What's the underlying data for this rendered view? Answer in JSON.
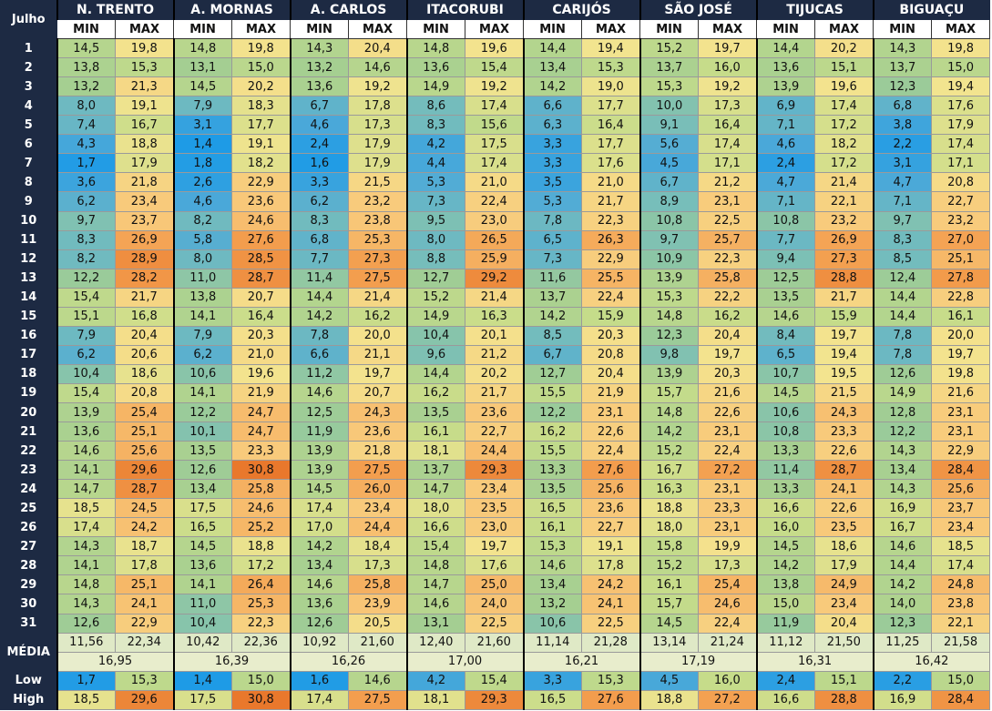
{
  "table": {
    "corner": "Julho",
    "stations": [
      "N. TRENTO",
      "A. MORNAS",
      "A. CARLOS",
      "ITACORUBI",
      "CARIJÓS",
      "SÃO JOSÉ",
      "TIJUCAS",
      "BIGUAÇU"
    ],
    "min_label": "MIN",
    "max_label": "MAX",
    "rows": [
      {
        "day": "1",
        "values": [
          "14,5",
          "19,8",
          "14,8",
          "19,8",
          "14,3",
          "20,4",
          "14,8",
          "19,6",
          "14,4",
          "19,4",
          "15,2",
          "19,7",
          "14,4",
          "20,2",
          "14,3",
          "19,8"
        ]
      },
      {
        "day": "2",
        "values": [
          "13,8",
          "15,3",
          "13,1",
          "15,0",
          "13,2",
          "14,6",
          "13,6",
          "15,4",
          "13,4",
          "15,3",
          "13,7",
          "16,0",
          "13,6",
          "15,1",
          "13,7",
          "15,0"
        ]
      },
      {
        "day": "3",
        "values": [
          "13,2",
          "21,3",
          "14,5",
          "20,2",
          "13,6",
          "19,2",
          "14,9",
          "19,2",
          "14,2",
          "19,0",
          "15,3",
          "19,2",
          "13,9",
          "19,6",
          "12,3",
          "19,4"
        ]
      },
      {
        "day": "4",
        "values": [
          "8,0",
          "19,1",
          "7,9",
          "18,3",
          "6,7",
          "17,8",
          "8,6",
          "17,4",
          "6,6",
          "17,7",
          "10,0",
          "17,3",
          "6,9",
          "17,4",
          "6,8",
          "17,6"
        ]
      },
      {
        "day": "5",
        "values": [
          "7,4",
          "16,7",
          "3,1",
          "17,7",
          "4,6",
          "17,3",
          "8,3",
          "15,6",
          "6,3",
          "16,4",
          "9,1",
          "16,4",
          "7,1",
          "17,2",
          "3,8",
          "17,9"
        ]
      },
      {
        "day": "6",
        "values": [
          "4,3",
          "18,8",
          "1,4",
          "19,1",
          "2,4",
          "17,9",
          "4,2",
          "17,5",
          "3,3",
          "17,7",
          "5,6",
          "17,4",
          "4,6",
          "18,2",
          "2,2",
          "17,4"
        ]
      },
      {
        "day": "7",
        "values": [
          "1,7",
          "17,9",
          "1,8",
          "18,2",
          "1,6",
          "17,9",
          "4,4",
          "17,4",
          "3,3",
          "17,6",
          "4,5",
          "17,1",
          "2,4",
          "17,2",
          "3,1",
          "17,1"
        ]
      },
      {
        "day": "8",
        "values": [
          "3,6",
          "21,8",
          "2,6",
          "22,9",
          "3,3",
          "21,5",
          "5,3",
          "21,0",
          "3,5",
          "21,0",
          "6,7",
          "21,2",
          "4,7",
          "21,4",
          "4,7",
          "20,8"
        ]
      },
      {
        "day": "9",
        "values": [
          "6,2",
          "23,4",
          "4,6",
          "23,6",
          "6,2",
          "23,2",
          "7,3",
          "22,4",
          "5,3",
          "21,7",
          "8,9",
          "23,1",
          "7,1",
          "22,1",
          "7,1",
          "22,7"
        ]
      },
      {
        "day": "10",
        "values": [
          "9,7",
          "23,7",
          "8,2",
          "24,6",
          "8,3",
          "23,8",
          "9,5",
          "23,0",
          "7,8",
          "22,3",
          "10,8",
          "22,5",
          "10,8",
          "23,2",
          "9,7",
          "23,2"
        ]
      },
      {
        "day": "11",
        "values": [
          "8,3",
          "26,9",
          "5,8",
          "27,6",
          "6,8",
          "25,3",
          "8,0",
          "26,5",
          "6,5",
          "26,3",
          "9,7",
          "25,7",
          "7,7",
          "26,9",
          "8,3",
          "27,0"
        ]
      },
      {
        "day": "12",
        "values": [
          "8,2",
          "28,9",
          "8,0",
          "28,5",
          "7,7",
          "27,3",
          "8,8",
          "25,9",
          "7,3",
          "22,9",
          "10,9",
          "22,3",
          "9,4",
          "27,3",
          "8,5",
          "25,1"
        ]
      },
      {
        "day": "13",
        "values": [
          "12,2",
          "28,2",
          "11,0",
          "28,7",
          "11,4",
          "27,5",
          "12,7",
          "29,2",
          "11,6",
          "25,5",
          "13,9",
          "25,8",
          "12,5",
          "28,8",
          "12,4",
          "27,8"
        ]
      },
      {
        "day": "14",
        "values": [
          "15,4",
          "21,7",
          "13,8",
          "20,7",
          "14,4",
          "21,4",
          "15,2",
          "21,4",
          "13,7",
          "22,4",
          "15,3",
          "22,2",
          "13,5",
          "21,7",
          "14,4",
          "22,8"
        ]
      },
      {
        "day": "15",
        "values": [
          "15,1",
          "16,8",
          "14,1",
          "16,4",
          "14,2",
          "16,2",
          "14,9",
          "16,3",
          "14,2",
          "15,9",
          "14,8",
          "16,2",
          "14,6",
          "15,9",
          "14,4",
          "16,1"
        ]
      },
      {
        "day": "16",
        "values": [
          "7,9",
          "20,4",
          "7,9",
          "20,3",
          "7,8",
          "20,0",
          "10,4",
          "20,1",
          "8,5",
          "20,3",
          "12,3",
          "20,4",
          "8,4",
          "19,7",
          "7,8",
          "20,0"
        ]
      },
      {
        "day": "17",
        "values": [
          "6,2",
          "20,6",
          "6,2",
          "21,0",
          "6,6",
          "21,1",
          "9,6",
          "21,2",
          "6,7",
          "20,8",
          "9,8",
          "19,7",
          "6,5",
          "19,4",
          "7,8",
          "19,7"
        ]
      },
      {
        "day": "18",
        "values": [
          "10,4",
          "18,6",
          "10,6",
          "19,6",
          "11,2",
          "19,7",
          "14,4",
          "20,2",
          "12,7",
          "20,4",
          "13,9",
          "20,3",
          "10,7",
          "19,5",
          "12,6",
          "19,8"
        ]
      },
      {
        "day": "19",
        "values": [
          "15,4",
          "20,8",
          "14,1",
          "21,9",
          "14,6",
          "20,7",
          "16,2",
          "21,7",
          "15,5",
          "21,9",
          "15,7",
          "21,6",
          "14,5",
          "21,5",
          "14,9",
          "21,6"
        ]
      },
      {
        "day": "20",
        "values": [
          "13,9",
          "25,4",
          "12,2",
          "24,7",
          "12,5",
          "24,3",
          "13,5",
          "23,6",
          "12,2",
          "23,1",
          "14,8",
          "22,6",
          "10,6",
          "24,3",
          "12,8",
          "23,1"
        ]
      },
      {
        "day": "21",
        "values": [
          "13,6",
          "25,1",
          "10,1",
          "24,7",
          "11,9",
          "23,6",
          "16,1",
          "22,7",
          "16,2",
          "22,6",
          "14,2",
          "23,1",
          "10,8",
          "23,3",
          "12,2",
          "23,1"
        ]
      },
      {
        "day": "22",
        "values": [
          "14,6",
          "25,6",
          "13,5",
          "23,3",
          "13,9",
          "21,8",
          "18,1",
          "24,4",
          "15,5",
          "22,4",
          "15,2",
          "22,4",
          "13,3",
          "22,6",
          "14,3",
          "22,9"
        ]
      },
      {
        "day": "23",
        "values": [
          "14,1",
          "29,6",
          "12,6",
          "30,8",
          "13,9",
          "27,5",
          "13,7",
          "29,3",
          "13,3",
          "27,6",
          "16,7",
          "27,2",
          "11,4",
          "28,7",
          "13,4",
          "28,4"
        ]
      },
      {
        "day": "24",
        "values": [
          "14,7",
          "28,7",
          "13,4",
          "25,8",
          "14,5",
          "26,0",
          "14,7",
          "23,4",
          "13,5",
          "25,6",
          "16,3",
          "23,1",
          "13,3",
          "24,1",
          "14,3",
          "25,6"
        ]
      },
      {
        "day": "25",
        "values": [
          "18,5",
          "24,5",
          "17,5",
          "24,6",
          "17,4",
          "23,4",
          "18,0",
          "23,5",
          "16,5",
          "23,6",
          "18,8",
          "23,3",
          "16,6",
          "22,6",
          "16,9",
          "23,7"
        ]
      },
      {
        "day": "26",
        "values": [
          "17,4",
          "24,2",
          "16,5",
          "25,2",
          "17,0",
          "24,4",
          "16,6",
          "23,0",
          "16,1",
          "22,7",
          "18,0",
          "23,1",
          "16,0",
          "23,5",
          "16,7",
          "23,4"
        ]
      },
      {
        "day": "27",
        "values": [
          "14,3",
          "18,7",
          "14,5",
          "18,8",
          "14,2",
          "18,4",
          "15,4",
          "19,7",
          "15,3",
          "19,1",
          "15,8",
          "19,9",
          "14,5",
          "18,6",
          "14,6",
          "18,5"
        ]
      },
      {
        "day": "28",
        "values": [
          "14,1",
          "17,8",
          "13,6",
          "17,2",
          "13,4",
          "17,3",
          "14,8",
          "17,6",
          "14,6",
          "17,8",
          "15,2",
          "17,3",
          "14,2",
          "17,9",
          "14,4",
          "17,4"
        ]
      },
      {
        "day": "29",
        "values": [
          "14,8",
          "25,1",
          "14,1",
          "26,4",
          "14,6",
          "25,8",
          "14,7",
          "25,0",
          "13,4",
          "24,2",
          "16,1",
          "25,4",
          "13,8",
          "24,9",
          "14,2",
          "24,8"
        ]
      },
      {
        "day": "30",
        "values": [
          "14,3",
          "24,1",
          "11,0",
          "25,3",
          "13,6",
          "23,9",
          "14,6",
          "24,0",
          "13,2",
          "24,1",
          "15,7",
          "24,6",
          "15,0",
          "23,4",
          "14,0",
          "23,8"
        ]
      },
      {
        "day": "31",
        "values": [
          "12,6",
          "22,9",
          "10,4",
          "22,3",
          "12,6",
          "20,5",
          "13,1",
          "22,5",
          "10,6",
          "22,5",
          "14,5",
          "22,4",
          "11,9",
          "20,4",
          "12,3",
          "22,1"
        ]
      }
    ],
    "mean_label": "MÉDIA",
    "means": [
      "11,56",
      "22,34",
      "10,42",
      "22,36",
      "10,92",
      "21,60",
      "12,40",
      "21,60",
      "11,14",
      "21,28",
      "13,14",
      "21,24",
      "11,12",
      "21,50",
      "11,25",
      "21,58"
    ],
    "overall": [
      "16,95",
      "16,39",
      "16,26",
      "17,00",
      "16,21",
      "17,19",
      "16,31",
      "16,42"
    ],
    "low_label": "Low",
    "low": [
      "1,7",
      "15,3",
      "1,4",
      "15,0",
      "1,6",
      "14,6",
      "4,2",
      "15,4",
      "3,3",
      "15,3",
      "4,5",
      "16,0",
      "2,4",
      "15,1",
      "2,2",
      "15,0"
    ],
    "high_label": "High",
    "high": [
      "18,5",
      "29,6",
      "17,5",
      "30,8",
      "17,4",
      "27,5",
      "18,1",
      "29,3",
      "16,5",
      "27,6",
      "18,8",
      "27,2",
      "16,6",
      "28,8",
      "16,9",
      "28,4"
    ]
  }
}
